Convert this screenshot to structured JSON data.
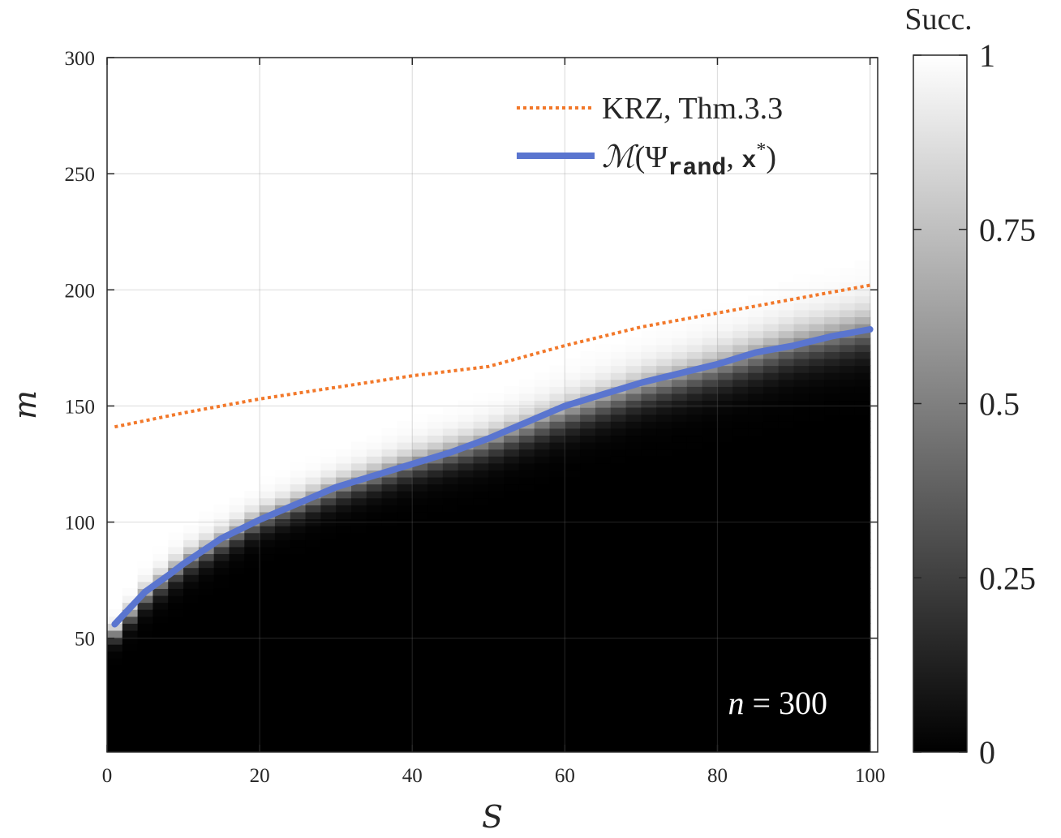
{
  "chart_data": {
    "type": "heatmap",
    "title": "",
    "xlabel": "S",
    "ylabel": "m",
    "xlim": [
      0,
      101
    ],
    "ylim": [
      1,
      300
    ],
    "x_ticks": [
      "0",
      "20",
      "40",
      "60",
      "80",
      "100"
    ],
    "y_ticks": [
      "50",
      "100",
      "150",
      "200",
      "250",
      "300"
    ],
    "grid": true,
    "legend_position": "top-right",
    "annotation": "n = 300",
    "colorbar": {
      "title": "Succ.",
      "range": [
        0,
        1
      ],
      "ticks": [
        "0",
        "0.25",
        "0.5",
        "0.75",
        "1"
      ],
      "colormap": "gray"
    },
    "heatmap_transition": {
      "description": "success probability rises from 0 below the transition to 1 above it",
      "S": [
        1,
        5,
        10,
        20,
        30,
        40,
        50,
        60,
        70,
        80,
        90,
        100
      ],
      "m_center": [
        52,
        68,
        82,
        101,
        114,
        125,
        134,
        146,
        157,
        166,
        176,
        183
      ],
      "width": [
        6,
        8,
        9,
        9,
        10,
        11,
        12,
        13,
        14,
        15,
        16,
        17
      ]
    },
    "series": [
      {
        "name": "KRZ, Thm.3.3",
        "style": "dotted",
        "color": "#f2782a",
        "x": [
          1,
          10,
          20,
          30,
          40,
          50,
          60,
          70,
          80,
          90,
          100
        ],
        "y": [
          141,
          147,
          153,
          158,
          163,
          167,
          176,
          184,
          190,
          196,
          202
        ]
      },
      {
        "name": "M(Ψ_rand, x*)",
        "style": "solid",
        "color": "#5a75cf",
        "x": [
          1,
          3,
          5,
          8,
          10,
          15,
          20,
          25,
          30,
          35,
          40,
          45,
          50,
          55,
          60,
          65,
          70,
          75,
          80,
          85,
          90,
          95,
          100
        ],
        "y": [
          56,
          63,
          70,
          77,
          82,
          93,
          101,
          108,
          115,
          120,
          125,
          130,
          136,
          143,
          150,
          155,
          160,
          164,
          168,
          173,
          176,
          180,
          183
        ]
      }
    ]
  }
}
